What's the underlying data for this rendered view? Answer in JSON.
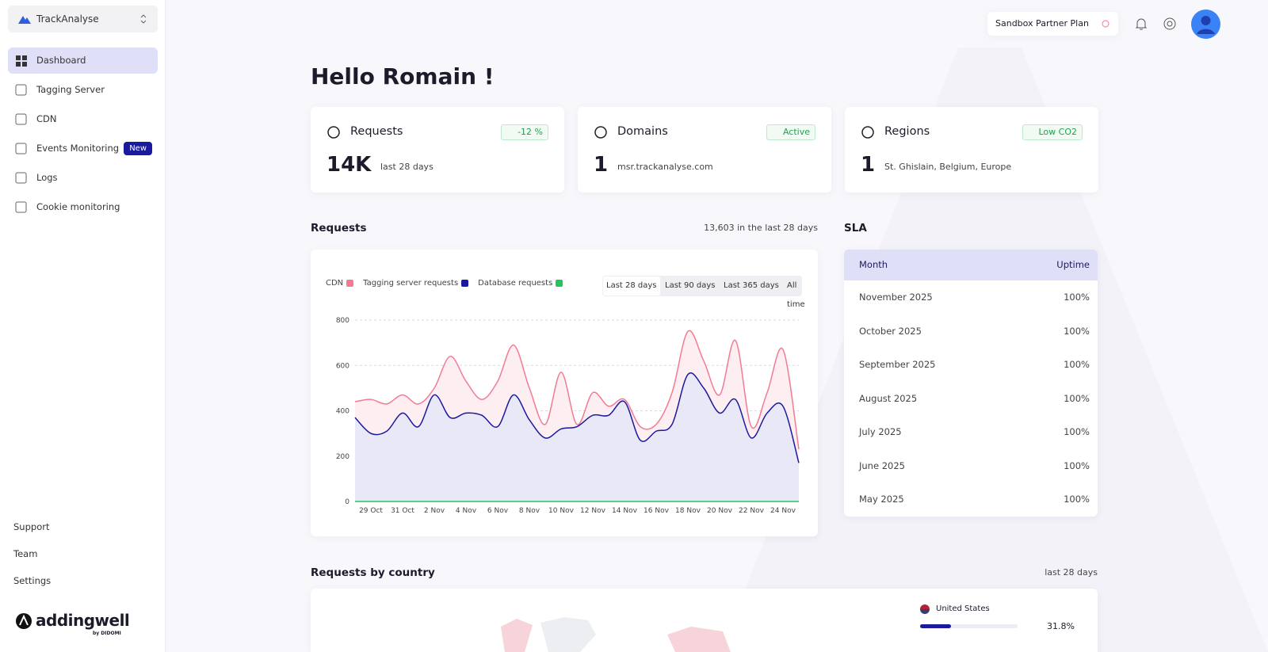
{
  "sidebar": {
    "workspace": "TrackAnalyse",
    "nav": [
      {
        "label": "Dashboard"
      },
      {
        "label": "Tagging Server"
      },
      {
        "label": "CDN"
      },
      {
        "label": "Events Monitoring",
        "badge": "New"
      },
      {
        "label": "Logs"
      },
      {
        "label": "Cookie monitoring"
      }
    ],
    "footer": [
      "Support",
      "Team",
      "Settings"
    ],
    "brand": "addingwell",
    "brand_sub": "by DIDOMI"
  },
  "header": {
    "plan": "Sandbox Partner Plan"
  },
  "greeting": "Hello Romain !",
  "cards": [
    {
      "title": "Requests",
      "badge": "-12 %",
      "value": "14K",
      "caption": "last 28 days"
    },
    {
      "title": "Domains",
      "badge": "Active",
      "value": "1",
      "caption": "msr.trackanalyse.com"
    },
    {
      "title": "Regions",
      "badge": "Low CO2",
      "value": "1",
      "caption": "St. Ghislain, Belgium, Europe"
    }
  ],
  "requests": {
    "title": "Requests",
    "summary": "13,603 in the last 28 days",
    "ranges": [
      "Last 28 days",
      "Last 90 days",
      "Last 365 days",
      "All time"
    ],
    "chart": {
      "type": "line",
      "categories": [
        null,
        "29 Oct",
        null,
        "31 Oct",
        null,
        "2 Nov",
        null,
        "4 Nov",
        null,
        "6 Nov",
        null,
        "8 Nov",
        null,
        "10 Nov",
        null,
        "12 Nov",
        null,
        "14 Nov",
        null,
        "16 Nov",
        null,
        "18 Nov",
        null,
        "20 Nov",
        null,
        "22 Nov",
        null,
        "24 Nov",
        null
      ],
      "series": [
        {
          "name": "CDN",
          "color": "#f27b93",
          "values": [
            440,
            450,
            430,
            470,
            430,
            500,
            640,
            530,
            450,
            530,
            690,
            500,
            340,
            570,
            340,
            480,
            420,
            450,
            330,
            340,
            480,
            750,
            620,
            470,
            710,
            330,
            480,
            670,
            230
          ]
        },
        {
          "name": "Tagging server requests",
          "color": "#1a1aa0",
          "values": [
            370,
            300,
            310,
            390,
            330,
            470,
            370,
            390,
            380,
            330,
            470,
            360,
            280,
            320,
            330,
            380,
            380,
            440,
            270,
            310,
            340,
            560,
            500,
            390,
            450,
            280,
            390,
            420,
            170
          ]
        },
        {
          "name": "Database requests",
          "color": "#22c55e",
          "values": [
            0,
            0,
            0,
            0,
            0,
            0,
            0,
            0,
            0,
            0,
            0,
            0,
            0,
            0,
            0,
            0,
            0,
            0,
            0,
            0,
            0,
            0,
            0,
            0,
            0,
            0,
            0,
            0,
            0
          ]
        }
      ],
      "ylim": [
        0,
        800
      ],
      "yticks": [
        0,
        200,
        400,
        600,
        800
      ],
      "grid": true
    }
  },
  "sla": {
    "title": "SLA",
    "columns": [
      "Month",
      "Uptime"
    ],
    "rows": [
      [
        "November 2025",
        "100%"
      ],
      [
        "October 2025",
        "100%"
      ],
      [
        "September 2025",
        "100%"
      ],
      [
        "August 2025",
        "100%"
      ],
      [
        "July 2025",
        "100%"
      ],
      [
        "June 2025",
        "100%"
      ],
      [
        "May 2025",
        "100%"
      ]
    ]
  },
  "countries": {
    "title": "Requests by country",
    "period": "last 28 days",
    "items": [
      {
        "name": "United States",
        "value": 31.8,
        "value_label": "31.8%"
      }
    ]
  }
}
